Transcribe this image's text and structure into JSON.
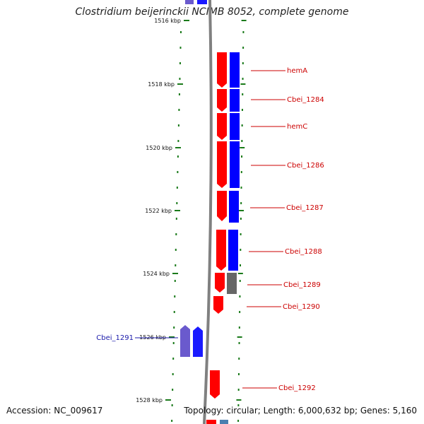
{
  "title": "Clostridium beijerinckii NCIMB 8052, complete genome",
  "footer": {
    "accession": "Accession: NC_009617",
    "summary": "Topology: circular; Length: 6,000,632 bp; Genes: 5,160"
  },
  "colors": {
    "forward_strand": "#ff0000",
    "reverse_strand": "#0000ff",
    "pseudo_or_other": "#666666",
    "faded_reverse": "#6a5acd",
    "backbone": "#808080",
    "tick": "#1a7a1a",
    "label_forward": "#cc0000",
    "label_reverse": "#1a1aaa"
  },
  "axis": {
    "ticks": [
      "1516 kbp",
      "1518 kbp",
      "1520 kbp",
      "1522 kbp",
      "1524 kbp",
      "1526 kbp",
      "1528 kbp"
    ]
  },
  "genes": [
    {
      "label": "hemA",
      "strand": "both"
    },
    {
      "label": "Cbei_1284",
      "strand": "both"
    },
    {
      "label": "hemC",
      "strand": "both"
    },
    {
      "label": "Cbei_1286",
      "strand": "both"
    },
    {
      "label": "Cbei_1287",
      "strand": "both"
    },
    {
      "label": "Cbei_1288",
      "strand": "both"
    },
    {
      "label": "Cbei_1289",
      "strand": "both"
    },
    {
      "label": "Cbei_1290",
      "strand": "forward"
    },
    {
      "label": "Cbei_1291",
      "strand": "reverse"
    },
    {
      "label": "Cbei_1292",
      "strand": "forward"
    }
  ]
}
